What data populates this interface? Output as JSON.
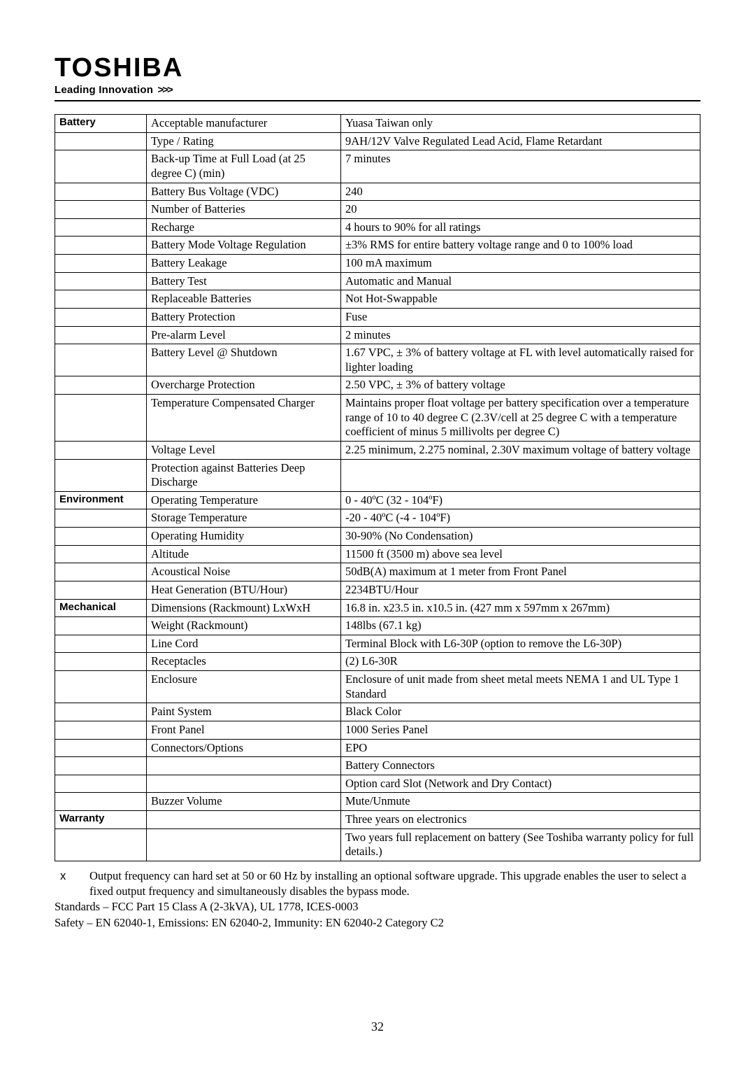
{
  "brand": {
    "name": "TOSHIBA",
    "tagline": "Leading Innovation",
    "chevrons": ">>>"
  },
  "spec_rows": [
    {
      "category": "Battery",
      "param": "Acceptable manufacturer",
      "value": "Yuasa Taiwan only"
    },
    {
      "category": "",
      "param": "Type / Rating",
      "value": "9AH/12V Valve Regulated Lead Acid, Flame Retardant"
    },
    {
      "category": "",
      "param": "Back-up Time at Full Load (at 25 degree C) (min)",
      "value": "7 minutes"
    },
    {
      "category": "",
      "param": "Battery Bus Voltage (VDC)",
      "value": "240"
    },
    {
      "category": "",
      "param": "Number of Batteries",
      "value": "20"
    },
    {
      "category": "",
      "param": "Recharge",
      "value": "4 hours to 90% for all ratings"
    },
    {
      "category": "",
      "param": "Battery Mode Voltage Regulation",
      "value": "±3% RMS for entire battery voltage range and 0 to 100% load"
    },
    {
      "category": "",
      "param": "Battery Leakage",
      "value": "100 mA maximum"
    },
    {
      "category": "",
      "param": "Battery Test",
      "value": "Automatic and Manual"
    },
    {
      "category": "",
      "param": "Replaceable Batteries",
      "value": "Not Hot-Swappable"
    },
    {
      "category": "",
      "param": "Battery Protection",
      "value": "Fuse"
    },
    {
      "category": "",
      "param": "Pre-alarm Level",
      "value": "2 minutes"
    },
    {
      "category": "",
      "param": "Battery Level @ Shutdown",
      "value": "1.67 VPC, ± 3% of battery voltage at FL with level automatically raised for lighter loading"
    },
    {
      "category": "",
      "param": "Overcharge Protection",
      "value": "2.50 VPC,  ± 3% of battery voltage"
    },
    {
      "category": "",
      "param": "Temperature Compensated Charger",
      "value": "Maintains proper float voltage per battery specification over a temperature range of 10 to 40 degree C (2.3V/cell at 25 degree C with a temperature coefficient of minus 5 millivolts per degree C)"
    },
    {
      "category": "",
      "param": "Voltage Level",
      "value": "2.25 minimum, 2.275 nominal, 2.30V maximum voltage of battery voltage"
    },
    {
      "category": "",
      "param": "Protection against Batteries Deep Discharge",
      "value": ""
    },
    {
      "category": "Environment",
      "param": "Operating Temperature",
      "value": "0 - 40ºC (32 - 104ºF)"
    },
    {
      "category": "",
      "param": "Storage Temperature",
      "value": "-20 - 40ºC (-4 - 104ºF)"
    },
    {
      "category": "",
      "param": "Operating Humidity",
      "value": "30-90% (No Condensation)"
    },
    {
      "category": "",
      "param": "Altitude",
      "value": "11500 ft (3500 m) above sea level"
    },
    {
      "category": "",
      "param": "Acoustical Noise",
      "value": "50dB(A) maximum at 1 meter from Front Panel"
    },
    {
      "category": "",
      "param": "Heat Generation (BTU/Hour)",
      "value": "2234BTU/Hour"
    },
    {
      "category": "Mechanical",
      "param": "Dimensions (Rackmount) LxWxH",
      "value": "16.8 in. x23.5 in. x10.5 in. (427 mm x 597mm x 267mm)"
    },
    {
      "category": "",
      "param": "Weight (Rackmount)",
      "value": "148lbs  (67.1 kg)"
    },
    {
      "category": "",
      "param": "Line Cord",
      "value": "Terminal Block with L6-30P (option to remove the L6-30P)"
    },
    {
      "category": "",
      "param": "Receptacles",
      "value": "(2) L6-30R"
    },
    {
      "category": "",
      "param": "Enclosure",
      "value": "Enclosure of unit made from sheet metal meets NEMA 1 and UL Type 1 Standard"
    },
    {
      "category": "",
      "param": "Paint System",
      "value": "Black Color"
    },
    {
      "category": "",
      "param": "Front Panel",
      "value": "1000 Series Panel"
    },
    {
      "category": "",
      "param": "Connectors/Options",
      "value": "EPO"
    },
    {
      "category": "",
      "param": "",
      "value": "Battery Connectors"
    },
    {
      "category": "",
      "param": "",
      "value": "Option card Slot (Network and Dry Contact)"
    },
    {
      "category": "",
      "param": "Buzzer Volume",
      "value": "Mute/Unmute"
    },
    {
      "category": "Warranty",
      "param": "",
      "value": "Three years on electronics"
    },
    {
      "category": "",
      "param": "",
      "value": "Two years full replacement on battery (See Toshiba warranty policy for full details.)"
    }
  ],
  "footnotes": {
    "marker": "x",
    "note_x": "Output frequency can hard set at 50 or 60 Hz by installing an optional software upgrade.  This upgrade enables the user to select a fixed output frequency and simultaneously disables the bypass mode.",
    "standards": "Standards – FCC Part 15 Class A (2-3kVA), UL 1778, ICES-0003",
    "safety": "Safety – EN 62040-1, Emissions: EN 62040-2, Immunity: EN 62040-2 Category C2"
  },
  "page_number": "32"
}
